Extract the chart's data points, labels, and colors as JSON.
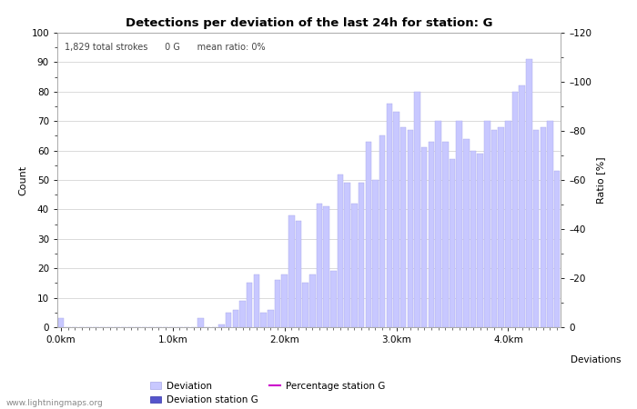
{
  "title": "Detections per deviation of the last 24h for station: G",
  "subtitle": "1,829 total strokes      0 G      mean ratio: 0%",
  "xlabel": "Deviations",
  "ylabel_left": "Count",
  "ylabel_right": "Ratio [%]",
  "watermark": "www.lightningmaps.org",
  "x_tick_labels": [
    "0.0km",
    "1.0km",
    "2.0km",
    "3.0km",
    "4.0km"
  ],
  "ylim_left": [
    0,
    100
  ],
  "ylim_right": [
    0,
    120
  ],
  "yticks_left": [
    0,
    10,
    20,
    30,
    40,
    50,
    60,
    70,
    80,
    90,
    100
  ],
  "yticks_right": [
    0,
    20,
    40,
    60,
    80,
    100,
    120
  ],
  "ytick_right_labels": [
    "0",
    "–20",
    "–40",
    "–60",
    "–80",
    "–100",
    "–120"
  ],
  "bar_color_light": "#c8c8ff",
  "bar_color_dark": "#5555cc",
  "bar_edge_color": "#a8a8e8",
  "line_color": "#cc00cc",
  "deviation_bars": [
    3,
    0,
    0,
    0,
    0,
    0,
    0,
    0,
    0,
    0,
    0,
    0,
    0,
    0,
    0,
    0,
    0,
    0,
    0,
    0,
    3,
    0,
    0,
    1,
    5,
    6,
    9,
    15,
    18,
    5,
    6,
    16,
    18,
    38,
    36,
    15,
    18,
    42,
    41,
    19,
    52,
    49,
    42,
    49,
    63,
    50,
    65,
    76,
    73,
    68,
    67,
    80,
    61,
    63,
    70,
    63,
    57,
    70,
    64,
    60,
    59,
    70,
    67,
    68,
    70,
    80,
    82,
    91,
    67,
    68,
    70,
    53
  ],
  "figsize": [
    7.0,
    4.5
  ],
  "dpi": 100,
  "bg_color": "#ffffff",
  "grid_color": "#cccccc",
  "spine_color": "#aaaaaa",
  "title_fontsize": 9.5,
  "label_fontsize": 8,
  "tick_fontsize": 7.5,
  "subtitle_fontsize": 7,
  "watermark_fontsize": 6.5,
  "legend_fontsize": 7.5
}
